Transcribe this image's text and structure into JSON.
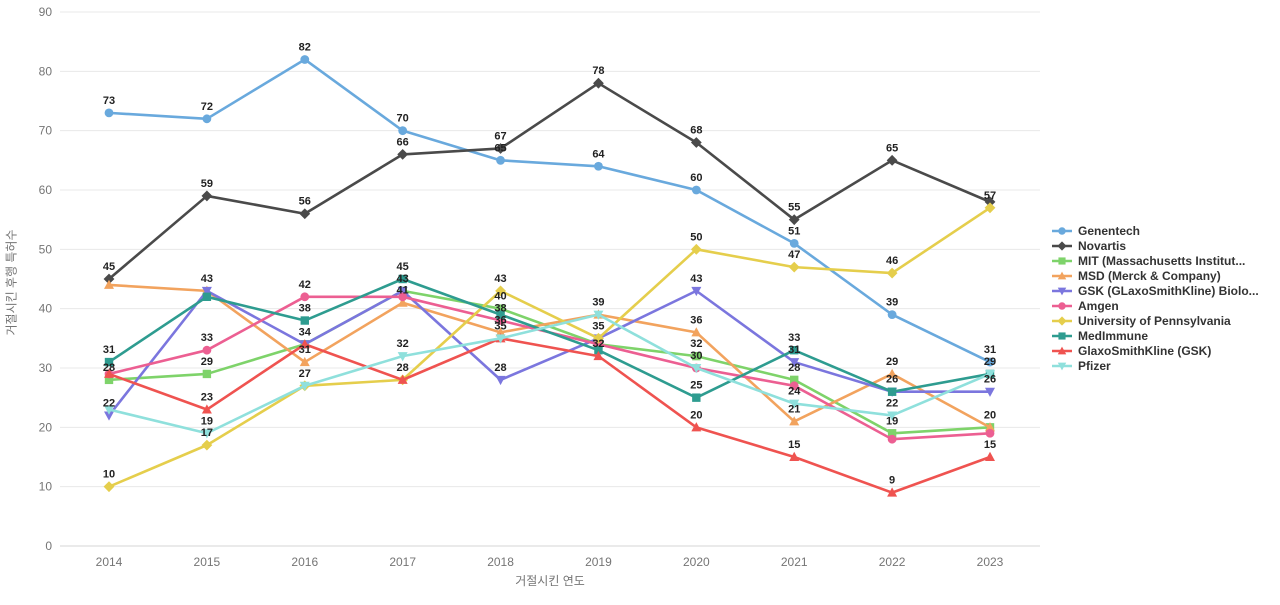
{
  "chart_data": {
    "type": "line",
    "title": "",
    "xlabel": "거절시킨 연도",
    "ylabel": "거절시킨 후행 특허수",
    "x": [
      "2014",
      "2015",
      "2016",
      "2017",
      "2018",
      "2019",
      "2020",
      "2021",
      "2022",
      "2023"
    ],
    "ylim": [
      0,
      90
    ],
    "y_ticks": [
      0,
      10,
      20,
      30,
      40,
      50,
      60,
      70,
      80,
      90
    ],
    "grid": true,
    "legend_position": "right",
    "series": [
      {
        "name": "Genentech",
        "color": "#69a9dd",
        "marker": "circle",
        "values": [
          73,
          72,
          82,
          70,
          65,
          64,
          60,
          51,
          39,
          31
        ],
        "labels_shown": [
          1,
          1,
          1,
          1,
          1,
          1,
          1,
          1,
          1,
          1
        ]
      },
      {
        "name": "Novartis",
        "color": "#4a4a4a",
        "marker": "diamond",
        "values": [
          45,
          59,
          56,
          66,
          67,
          78,
          68,
          55,
          65,
          58
        ],
        "labels_shown": [
          1,
          1,
          1,
          1,
          1,
          1,
          1,
          1,
          1,
          0
        ]
      },
      {
        "name": "MIT (Massachusetts Institut...",
        "color": "#7ed36a",
        "marker": "square",
        "values": [
          28,
          29,
          34,
          43,
          40,
          34,
          32,
          28,
          19,
          20
        ],
        "labels_shown": [
          1,
          1,
          0,
          0,
          1,
          0,
          1,
          1,
          1,
          0
        ]
      },
      {
        "name": "MSD (Merck & Company)",
        "color": "#f2a35e",
        "marker": "triangle-up",
        "values": [
          44,
          43,
          31,
          41,
          36,
          39,
          36,
          21,
          29,
          20
        ],
        "labels_shown": [
          0,
          0,
          1,
          1,
          1,
          1,
          1,
          1,
          1,
          1
        ]
      },
      {
        "name": "GSK (GLaxoSmithKline) Biolo...",
        "color": "#7b76de",
        "marker": "triangle-down",
        "values": [
          22,
          43,
          34,
          43,
          28,
          35,
          43,
          31,
          26,
          26
        ],
        "labels_shown": [
          1,
          1,
          1,
          1,
          1,
          0,
          1,
          1,
          0,
          1
        ]
      },
      {
        "name": "Amgen",
        "color": "#ec5f92",
        "marker": "circle",
        "values": [
          29,
          33,
          42,
          42,
          38,
          34,
          30,
          27,
          18,
          19
        ],
        "labels_shown": [
          0,
          1,
          1,
          0,
          1,
          0,
          1,
          0,
          0,
          0
        ]
      },
      {
        "name": "University of Pennsylvania",
        "color": "#e5ce4c",
        "marker": "diamond",
        "values": [
          10,
          17,
          27,
          28,
          43,
          35,
          50,
          47,
          46,
          57
        ],
        "labels_shown": [
          1,
          1,
          0,
          0,
          1,
          1,
          1,
          1,
          1,
          1
        ]
      },
      {
        "name": "MedImmune",
        "color": "#2e9c90",
        "marker": "square",
        "values": [
          31,
          42,
          38,
          45,
          39,
          33,
          25,
          33,
          26,
          29
        ],
        "labels_shown": [
          1,
          0,
          1,
          1,
          0,
          0,
          1,
          1,
          1,
          1
        ]
      },
      {
        "name": "GlaxoSmithKline (GSK)",
        "color": "#ef5350",
        "marker": "triangle-up",
        "values": [
          29,
          23,
          34,
          28,
          35,
          32,
          20,
          15,
          9,
          15
        ],
        "labels_shown": [
          0,
          1,
          0,
          1,
          0,
          1,
          1,
          1,
          1,
          1
        ]
      },
      {
        "name": "Pfizer",
        "color": "#8fe0dc",
        "marker": "triangle-down",
        "values": [
          23,
          19,
          27,
          32,
          35,
          39,
          30,
          24,
          22,
          29
        ],
        "labels_shown": [
          0,
          1,
          1,
          1,
          1,
          0,
          0,
          1,
          1,
          0
        ]
      }
    ]
  },
  "style": {
    "grid_color": "#e8e8e8",
    "baseline_color": "#d4d4d4",
    "tick_color": "#757575",
    "data_label_color": "#222222"
  }
}
